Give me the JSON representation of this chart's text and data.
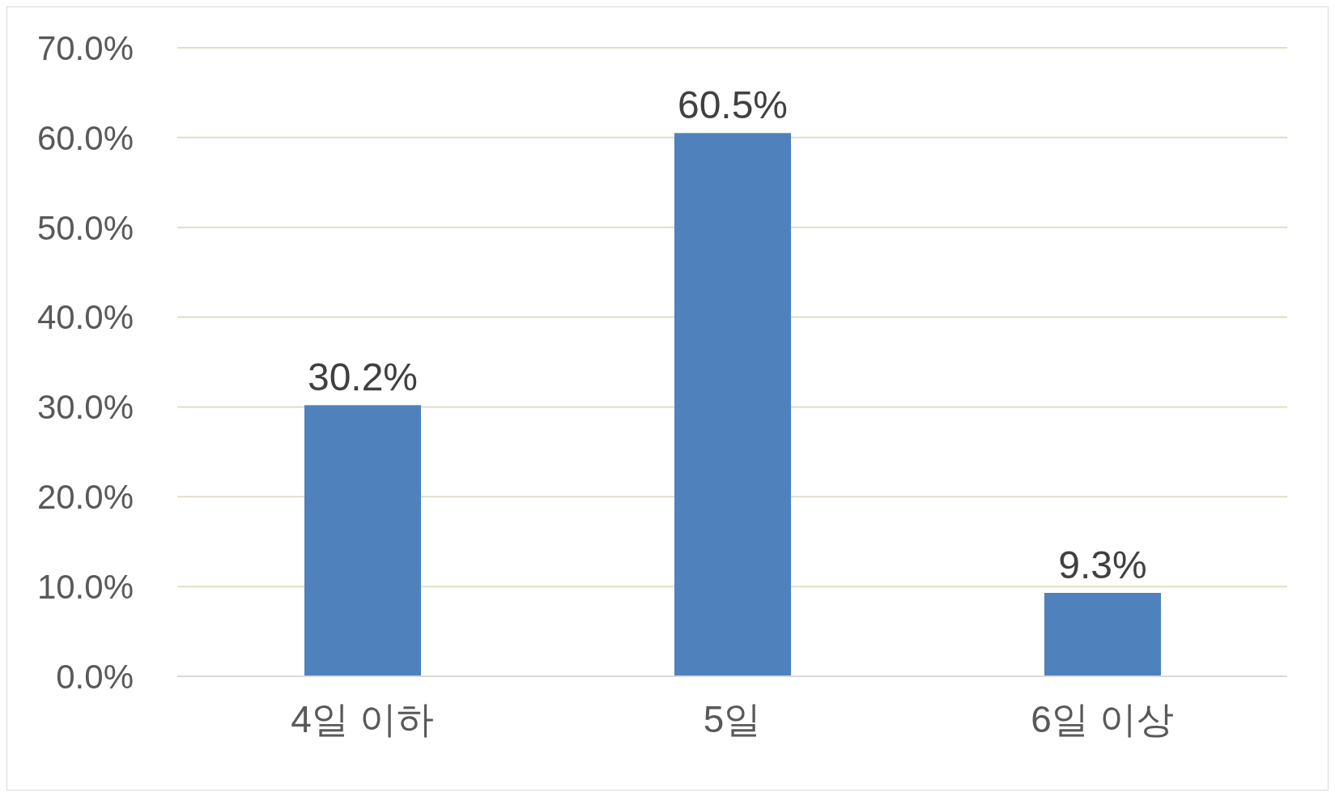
{
  "chart_data": {
    "type": "bar",
    "categories": [
      "4일 이하",
      "5일",
      "6일 이상"
    ],
    "values": [
      30.2,
      60.5,
      9.3
    ],
    "value_labels": [
      "30.2%",
      "60.5%",
      "9.3%"
    ],
    "color": "#4f81bd",
    "ylim": [
      0,
      70
    ],
    "yticks": [
      {
        "value": 0,
        "label": "0.0%"
      },
      {
        "value": 10,
        "label": "10.0%"
      },
      {
        "value": 20,
        "label": "20.0%"
      },
      {
        "value": 30,
        "label": "30.0%"
      },
      {
        "value": 40,
        "label": "40.0%"
      },
      {
        "value": 50,
        "label": "50.0%"
      },
      {
        "value": 60,
        "label": "60.0%"
      },
      {
        "value": 70,
        "label": "70.0%"
      }
    ],
    "grid": "y"
  }
}
